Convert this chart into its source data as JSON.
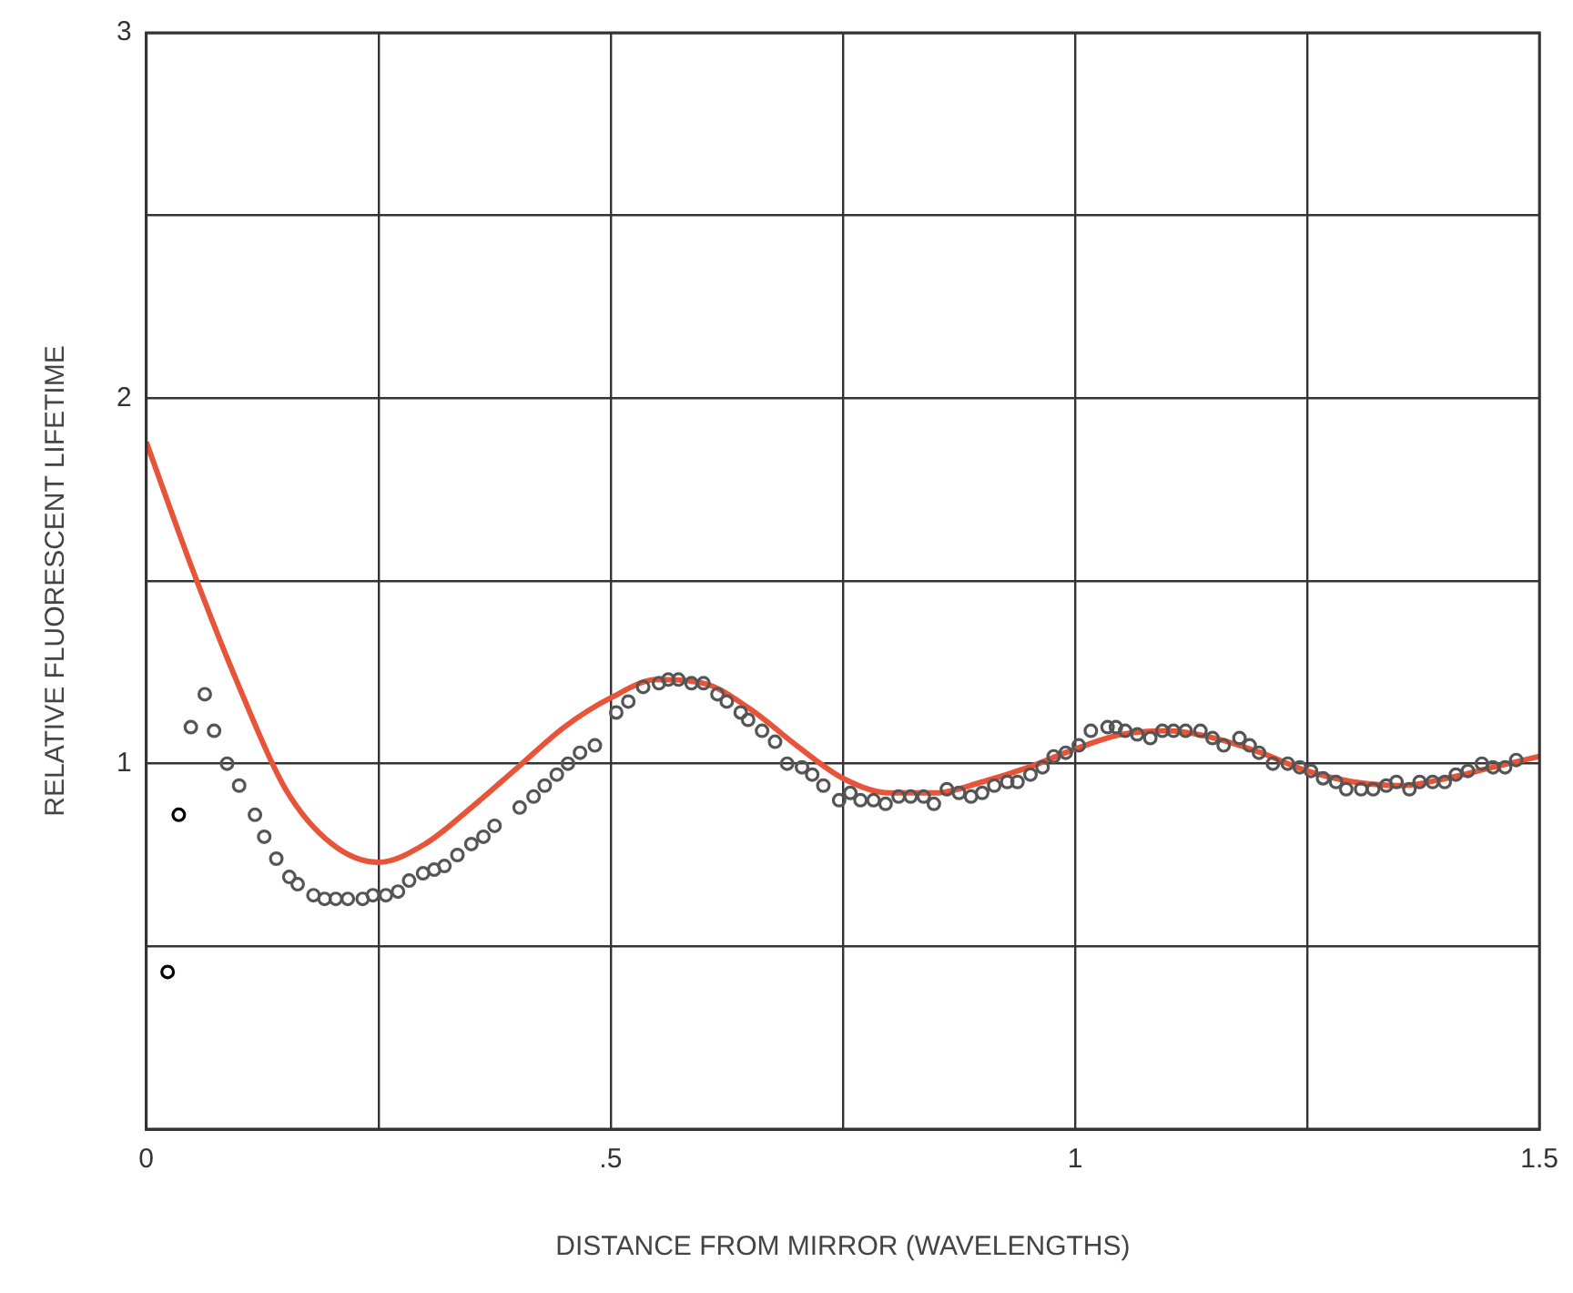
{
  "chart_data": {
    "type": "scatter",
    "xlabel": "DISTANCE FROM MIRROR (WAVELENGTHS)",
    "ylabel": "RELATIVE FLUORESCENT LIFETIME",
    "xlim": [
      0,
      1.5
    ],
    "ylim": [
      0,
      3
    ],
    "xticks": [
      0,
      {
        "value": 0.25,
        "label": null
      },
      {
        "value": 0.5,
        "label": ".5"
      },
      {
        "value": 0.75,
        "label": null
      },
      1,
      {
        "value": 1.25,
        "label": null
      },
      1.5
    ],
    "yticks": [
      {
        "value": 0,
        "label": null
      },
      {
        "value": 0.5,
        "label": null
      },
      1,
      {
        "value": 1.5,
        "label": null
      },
      2,
      {
        "value": 2.5,
        "label": null
      },
      3
    ],
    "grid": true,
    "legend": false,
    "series": [
      {
        "marker": "circle",
        "color": "#555555",
        "x": [
          0.048,
          0.063,
          0.073,
          0.087,
          0.1,
          0.117,
          0.127,
          0.14,
          0.154,
          0.163,
          0.18,
          0.192,
          0.204,
          0.217,
          0.233,
          0.244,
          0.258,
          0.271,
          0.283,
          0.298,
          0.31,
          0.321,
          0.335,
          0.35,
          0.363,
          0.375,
          0.402,
          0.417,
          0.429,
          0.442,
          0.454,
          0.467,
          0.483,
          0.506,
          0.519,
          0.535,
          0.552,
          0.562,
          0.573,
          0.587,
          0.6,
          0.615,
          0.625,
          0.64,
          0.648,
          0.663,
          0.677,
          0.69,
          0.706,
          0.717,
          0.729,
          0.746,
          0.758,
          0.769,
          0.783,
          0.796,
          0.81,
          0.823,
          0.837,
          0.848,
          0.862,
          0.875,
          0.888,
          0.9,
          0.913,
          0.927,
          0.938,
          0.952,
          0.965,
          0.977,
          0.99,
          1.004,
          1.017,
          1.035,
          1.044,
          1.054,
          1.067,
          1.081,
          1.094,
          1.106,
          1.119,
          1.135,
          1.148,
          1.16,
          1.177,
          1.188,
          1.198,
          1.213,
          1.229,
          1.242,
          1.254,
          1.267,
          1.281,
          1.292,
          1.308,
          1.321,
          1.335,
          1.346,
          1.36,
          1.371,
          1.385,
          1.398,
          1.41,
          1.423,
          1.438,
          1.45,
          1.463,
          1.475
        ],
        "values": [
          1.1,
          1.19,
          1.09,
          1.0,
          0.94,
          0.86,
          0.8,
          0.74,
          0.69,
          0.67,
          0.64,
          0.63,
          0.63,
          0.63,
          0.63,
          0.64,
          0.64,
          0.65,
          0.68,
          0.7,
          0.71,
          0.72,
          0.75,
          0.78,
          0.8,
          0.83,
          0.88,
          0.91,
          0.94,
          0.97,
          1.0,
          1.03,
          1.05,
          1.14,
          1.17,
          1.21,
          1.22,
          1.23,
          1.23,
          1.22,
          1.22,
          1.19,
          1.17,
          1.14,
          1.12,
          1.09,
          1.06,
          1.0,
          0.99,
          0.97,
          0.94,
          0.9,
          0.92,
          0.9,
          0.9,
          0.89,
          0.91,
          0.91,
          0.91,
          0.89,
          0.93,
          0.92,
          0.91,
          0.92,
          0.94,
          0.95,
          0.95,
          0.97,
          0.99,
          1.02,
          1.03,
          1.05,
          1.09,
          1.1,
          1.1,
          1.09,
          1.08,
          1.07,
          1.09,
          1.09,
          1.09,
          1.09,
          1.07,
          1.05,
          1.07,
          1.05,
          1.03,
          1.0,
          1.0,
          0.99,
          0.98,
          0.96,
          0.95,
          0.93,
          0.93,
          0.93,
          0.94,
          0.95,
          0.93,
          0.95,
          0.95,
          0.95,
          0.97,
          0.98,
          1.0,
          0.99,
          0.99,
          1.01
        ]
      },
      {
        "marker": "circle",
        "color": "#000000",
        "x": [
          0.023,
          0.035
        ],
        "values": [
          0.43,
          0.86
        ]
      },
      {
        "type": "line",
        "marker": "none",
        "line_style": "solid",
        "color": "#e8543a",
        "x": [
          0,
          0.05,
          0.1,
          0.15,
          0.2,
          0.25,
          0.3,
          0.35,
          0.4,
          0.45,
          0.5,
          0.55,
          0.6,
          0.65,
          0.7,
          0.75,
          0.8,
          0.85,
          0.9,
          0.95,
          1.0,
          1.05,
          1.1,
          1.15,
          1.2,
          1.25,
          1.3,
          1.35,
          1.4,
          1.45,
          1.5
        ],
        "values": [
          1.88,
          1.53,
          1.21,
          0.93,
          0.78,
          0.73,
          0.78,
          0.88,
          0.99,
          1.1,
          1.18,
          1.23,
          1.22,
          1.15,
          1.05,
          0.96,
          0.92,
          0.92,
          0.95,
          0.99,
          1.04,
          1.08,
          1.09,
          1.07,
          1.03,
          0.98,
          0.95,
          0.94,
          0.96,
          0.99,
          1.02
        ]
      }
    ]
  }
}
